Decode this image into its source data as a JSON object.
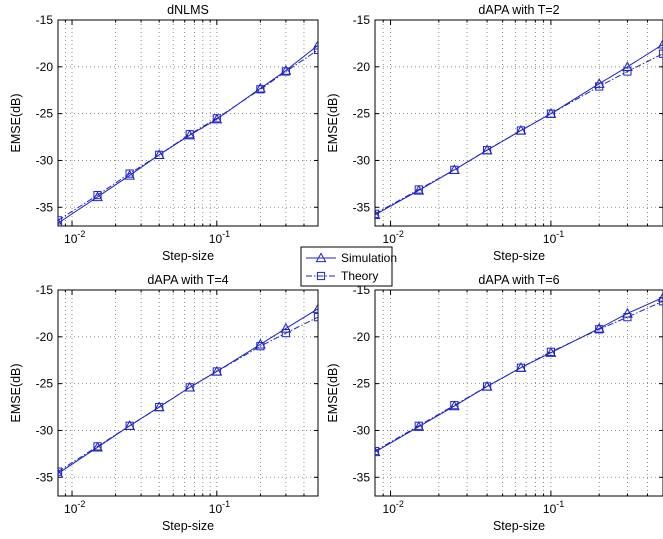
{
  "chart_data": [
    {
      "type": "line",
      "title": "dNLMS",
      "xlabel": "Step-size",
      "ylabel": "EMSE(dB)",
      "xscale": "log",
      "xlim": [
        0.008,
        0.5
      ],
      "ylim": [
        -37,
        -15
      ],
      "grid": true,
      "series": [
        {
          "name": "Simulation",
          "x": [
            0.008,
            0.015,
            0.025,
            0.04,
            0.065,
            0.1,
            0.2,
            0.3,
            0.5
          ],
          "values": [
            -36.7,
            -33.9,
            -31.6,
            -29.4,
            -27.3,
            -25.6,
            -22.3,
            -20.4,
            -17.7
          ]
        },
        {
          "name": "Theory",
          "x": [
            0.008,
            0.015,
            0.025,
            0.04,
            0.065,
            0.1,
            0.2,
            0.3,
            0.5
          ],
          "values": [
            -36.4,
            -33.7,
            -31.4,
            -29.4,
            -27.2,
            -25.5,
            -22.4,
            -20.5,
            -18.2
          ]
        }
      ]
    },
    {
      "type": "line",
      "title": "dAPA with T=2",
      "xlabel": "Step-size",
      "ylabel": "EMSE(dB)",
      "xscale": "log",
      "xlim": [
        0.008,
        0.5
      ],
      "ylim": [
        -37,
        -15
      ],
      "grid": true,
      "series": [
        {
          "name": "Simulation",
          "x": [
            0.008,
            0.015,
            0.025,
            0.04,
            0.065,
            0.1,
            0.2,
            0.3,
            0.5
          ],
          "values": [
            -35.8,
            -33.2,
            -31.0,
            -28.9,
            -26.8,
            -25.0,
            -21.8,
            -20.0,
            -17.6
          ]
        },
        {
          "name": "Theory",
          "x": [
            0.008,
            0.015,
            0.025,
            0.04,
            0.065,
            0.1,
            0.2,
            0.3,
            0.5
          ],
          "values": [
            -35.7,
            -33.1,
            -31.0,
            -28.9,
            -26.8,
            -25.0,
            -22.1,
            -20.5,
            -18.6
          ]
        }
      ]
    },
    {
      "type": "line",
      "title": "dAPA with T=4",
      "xlabel": "Step-size",
      "ylabel": "EMSE(dB)",
      "xscale": "log",
      "xlim": [
        0.008,
        0.5
      ],
      "ylim": [
        -37,
        -15
      ],
      "grid": true,
      "series": [
        {
          "name": "Simulation",
          "x": [
            0.008,
            0.015,
            0.025,
            0.04,
            0.065,
            0.1,
            0.2,
            0.3,
            0.5
          ],
          "values": [
            -34.6,
            -31.8,
            -29.5,
            -27.5,
            -25.4,
            -23.7,
            -20.8,
            -19.1,
            -17.0
          ]
        },
        {
          "name": "Theory",
          "x": [
            0.008,
            0.015,
            0.025,
            0.04,
            0.065,
            0.1,
            0.2,
            0.3,
            0.5
          ],
          "values": [
            -34.4,
            -31.7,
            -29.5,
            -27.5,
            -25.4,
            -23.7,
            -21.0,
            -19.6,
            -17.9
          ]
        }
      ]
    },
    {
      "type": "line",
      "title": "dAPA with T=6",
      "xlabel": "Step-size",
      "ylabel": "EMSE(dB)",
      "xscale": "log",
      "xlim": [
        0.008,
        0.5
      ],
      "ylim": [
        -37,
        -15
      ],
      "grid": true,
      "series": [
        {
          "name": "Simulation",
          "x": [
            0.008,
            0.015,
            0.025,
            0.04,
            0.065,
            0.1,
            0.2,
            0.3,
            0.5
          ],
          "values": [
            -32.3,
            -29.6,
            -27.4,
            -25.3,
            -23.3,
            -21.7,
            -19.1,
            -17.5,
            -15.8
          ]
        },
        {
          "name": "Theory",
          "x": [
            0.008,
            0.015,
            0.025,
            0.04,
            0.065,
            0.1,
            0.2,
            0.3,
            0.5
          ],
          "values": [
            -32.2,
            -29.5,
            -27.3,
            -25.3,
            -23.3,
            -21.6,
            -19.2,
            -17.9,
            -16.2
          ]
        }
      ]
    }
  ],
  "yticks": [
    "-35",
    "-30",
    "-25",
    "-20",
    "-15"
  ],
  "xtick_base": "10",
  "xtick_exponents": [
    "-2",
    "-1"
  ],
  "legend": {
    "labels": [
      "Simulation",
      "Theory"
    ],
    "placement": "center"
  },
  "colors": {
    "line": "#1f24c8",
    "grid": "#777777",
    "axis": "#000000"
  }
}
